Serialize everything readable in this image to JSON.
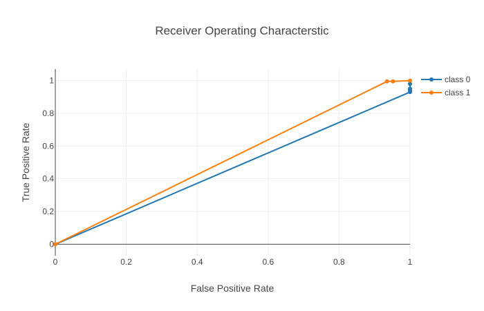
{
  "chart_data": {
    "type": "line",
    "title": "Receiver Operating Characterstic",
    "xlabel": "False Positive Rate",
    "ylabel": "True Positive Rate",
    "xlim": [
      0,
      1
    ],
    "ylim": [
      -0.07,
      1.07
    ],
    "x_ticks": [
      "0",
      "0.2",
      "0.4",
      "0.6",
      "0.8",
      "1"
    ],
    "y_ticks": [
      "0",
      "0.2",
      "0.4",
      "0.6",
      "0.8",
      "1"
    ],
    "grid": true,
    "legend_position": "top-right",
    "series": [
      {
        "name": "class 0",
        "color": "#1f77b4",
        "x": [
          0,
          1,
          1,
          1,
          1
        ],
        "y": [
          0,
          0.93,
          0.94,
          0.95,
          0.98
        ]
      },
      {
        "name": "class 1",
        "color": "#ff7f0e",
        "x": [
          0,
          0.935,
          0.952,
          1
        ],
        "y": [
          0,
          0.995,
          0.995,
          1
        ]
      }
    ]
  }
}
